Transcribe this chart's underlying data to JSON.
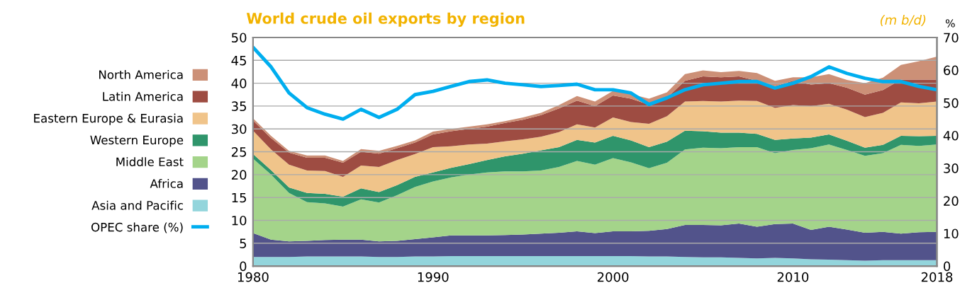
{
  "chart_data": {
    "type": "area",
    "stacked": true,
    "title": "World crude oil exports by region",
    "annotations": [
      "(m b/d)"
    ],
    "y2label": "%",
    "x": [
      1980,
      1981,
      1982,
      1983,
      1984,
      1985,
      1986,
      1987,
      1988,
      1989,
      1990,
      1991,
      1992,
      1993,
      1994,
      1995,
      1996,
      1997,
      1998,
      1999,
      2000,
      2001,
      2002,
      2003,
      2004,
      2005,
      2006,
      2007,
      2008,
      2009,
      2010,
      2011,
      2012,
      2013,
      2014,
      2015,
      2016,
      2017,
      2018
    ],
    "series": [
      {
        "name": "Asia and Pacific",
        "color": "#93d5dc",
        "values": [
          2.0,
          2.0,
          2.0,
          2.1,
          2.1,
          2.1,
          2.1,
          2.0,
          2.0,
          2.1,
          2.1,
          2.2,
          2.2,
          2.2,
          2.2,
          2.2,
          2.2,
          2.2,
          2.2,
          2.2,
          2.2,
          2.2,
          2.1,
          2.1,
          2.0,
          1.9,
          1.9,
          1.8,
          1.7,
          1.8,
          1.7,
          1.5,
          1.4,
          1.3,
          1.2,
          1.3,
          1.3,
          1.3,
          1.3
        ]
      },
      {
        "name": "Africa",
        "color": "#52538b",
        "values": [
          5.2,
          3.8,
          3.4,
          3.4,
          3.6,
          3.7,
          3.7,
          3.4,
          3.5,
          3.8,
          4.2,
          4.5,
          4.5,
          4.5,
          4.6,
          4.7,
          4.9,
          5.1,
          5.4,
          5.0,
          5.4,
          5.4,
          5.6,
          6.0,
          7.0,
          7.1,
          7.0,
          7.5,
          6.9,
          7.4,
          7.6,
          6.4,
          7.2,
          6.7,
          6.1,
          6.2,
          5.8,
          6.1,
          6.2
        ]
      },
      {
        "name": "Middle East",
        "color": "#a4d48a",
        "values": [
          16.3,
          14.2,
          10.6,
          8.5,
          8.0,
          7.2,
          8.8,
          8.5,
          10.0,
          11.4,
          12.2,
          12.7,
          13.3,
          13.8,
          13.9,
          13.8,
          13.8,
          14.4,
          15.4,
          15.0,
          16.0,
          15.1,
          13.7,
          14.5,
          16.5,
          16.9,
          16.9,
          16.7,
          17.4,
          15.5,
          16.1,
          17.9,
          18.0,
          17.4,
          16.8,
          17.2,
          19.4,
          18.9,
          19.1
        ]
      },
      {
        "name": "Western Europe",
        "color": "#2f956b",
        "values": [
          1.0,
          1.0,
          1.2,
          2.0,
          2.1,
          2.2,
          2.4,
          2.3,
          2.2,
          2.2,
          2.0,
          2.1,
          2.3,
          2.7,
          3.3,
          3.9,
          4.4,
          4.3,
          4.6,
          4.8,
          4.9,
          4.8,
          4.6,
          4.6,
          4.1,
          3.6,
          3.4,
          3.2,
          2.9,
          2.9,
          2.5,
          2.3,
          2.2,
          2.0,
          1.8,
          1.8,
          2.0,
          2.1,
          1.9
        ]
      },
      {
        "name": "Eastern Europe & Eurasia",
        "color": "#f0c48a",
        "values": [
          5.1,
          4.5,
          5.0,
          4.9,
          5.0,
          4.3,
          5.0,
          5.5,
          5.5,
          5.0,
          5.5,
          4.7,
          4.3,
          3.6,
          3.3,
          3.1,
          3.0,
          3.3,
          3.4,
          3.3,
          4.0,
          4.0,
          5.1,
          5.6,
          6.4,
          6.6,
          6.8,
          7.0,
          7.2,
          7.0,
          7.3,
          6.9,
          6.7,
          6.8,
          6.7,
          7.0,
          7.3,
          7.2,
          7.5
        ]
      },
      {
        "name": "Latin America",
        "color": "#9e4c42",
        "values": [
          2.2,
          2.5,
          2.6,
          2.8,
          2.9,
          3.1,
          3.0,
          2.9,
          2.6,
          2.5,
          2.8,
          3.3,
          3.4,
          3.7,
          4.0,
          4.3,
          4.7,
          5.2,
          5.2,
          4.7,
          4.8,
          5.1,
          4.2,
          4.0,
          4.5,
          5.4,
          5.3,
          5.3,
          4.4,
          4.7,
          5.3,
          4.7,
          4.5,
          4.8,
          4.9,
          5.0,
          5.0,
          5.2,
          4.8
        ]
      },
      {
        "name": "North America",
        "color": "#cc9077",
        "values": [
          0.5,
          0.5,
          0.4,
          0.5,
          0.5,
          0.4,
          0.6,
          0.6,
          0.5,
          0.5,
          0.6,
          0.5,
          0.5,
          0.5,
          0.4,
          0.5,
          0.5,
          0.7,
          1.0,
          1.0,
          1.0,
          1.0,
          1.3,
          1.2,
          1.5,
          1.3,
          1.1,
          1.2,
          1.7,
          1.2,
          0.8,
          1.6,
          2.0,
          1.7,
          2.5,
          2.7,
          3.2,
          4.0,
          5.0
        ]
      },
      {
        "name": "OPEC share (%)",
        "type": "line",
        "axis": "y2",
        "color": "#00aeef",
        "values": [
          67,
          61,
          53,
          48.5,
          46.5,
          45,
          48,
          45.5,
          48,
          52.5,
          53.5,
          55,
          56.5,
          57,
          56,
          55.5,
          55,
          55.3,
          55.7,
          54,
          54,
          53,
          49.5,
          51.5,
          54,
          55.5,
          56,
          56.5,
          56.5,
          54.5,
          56,
          58,
          61,
          59,
          57.5,
          56.5,
          56.5,
          55,
          54
        ]
      }
    ],
    "xlim": [
      1980,
      2018
    ],
    "xticks": [
      1980,
      1990,
      2000,
      2010,
      2018
    ],
    "ylim": [
      0,
      50
    ],
    "yticks": [
      0,
      5,
      10,
      15,
      20,
      25,
      30,
      35,
      40,
      45,
      50
    ],
    "y2lim": [
      0,
      70
    ],
    "y2ticks": [
      0,
      10,
      20,
      30,
      40,
      50,
      60,
      70
    ],
    "grid": "y",
    "legend": "left",
    "line_style": "solid",
    "marker": "none"
  }
}
